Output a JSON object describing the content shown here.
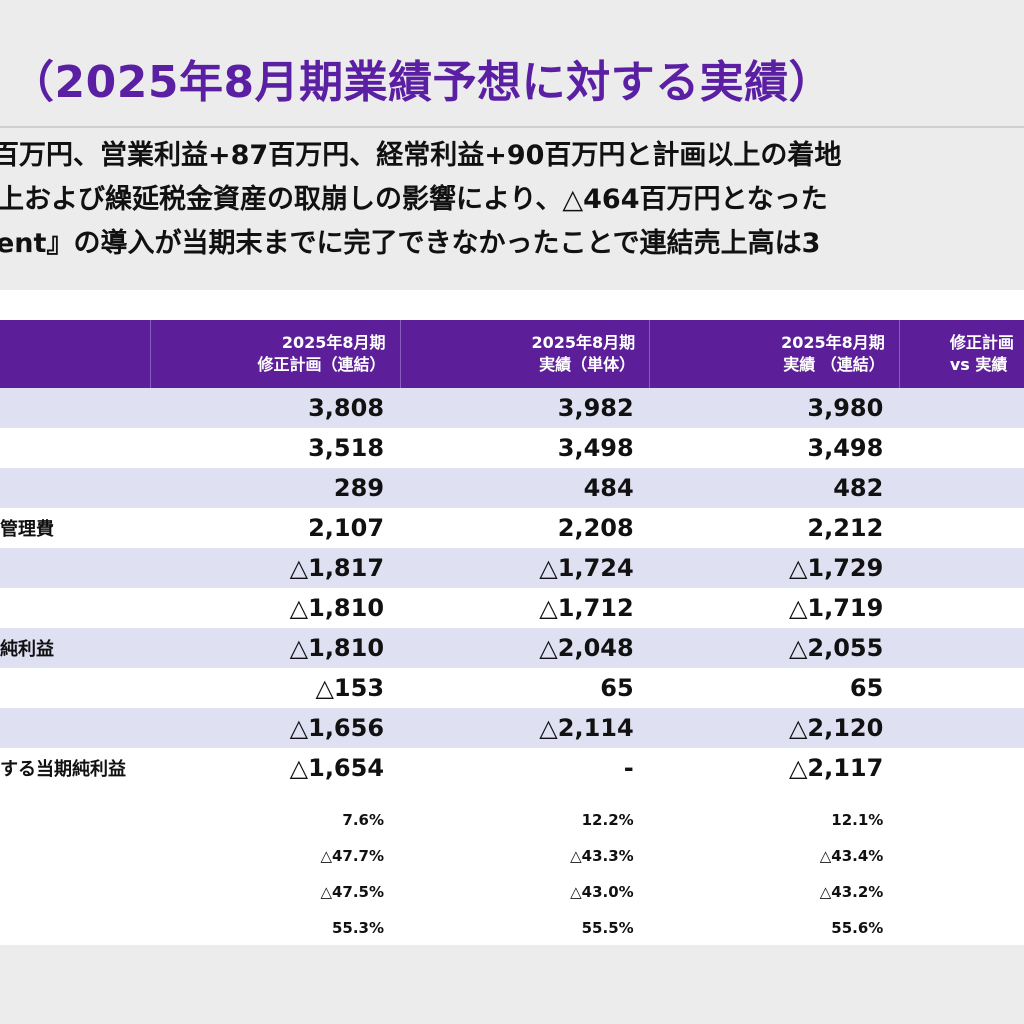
{
  "title": "（2025年8月期業績予想に対する実績）",
  "summary": [
    "百万円、営業利益+87百万円、経常利益+90百万円と計画以上の着地",
    "上および繰延税金資産の取崩しの影響により、△464百万円となった",
    "ent』の導入が当期末までに完了できなかったことで連結売上高は3"
  ],
  "table": {
    "headers": [
      {
        "line1": "2025年8月期",
        "line2": "修正計画（連結）"
      },
      {
        "line1": "2025年8月期",
        "line2": "実績（単体）"
      },
      {
        "line1": "2025年8月期",
        "line2": "実績 （連結）"
      },
      {
        "line1": "修正計画",
        "line2": "vs 実績"
      }
    ],
    "rows": [
      {
        "label": "",
        "values": [
          "3,808",
          "3,982",
          "3,980",
          ""
        ]
      },
      {
        "label": "",
        "values": [
          "3,518",
          "3,498",
          "3,498",
          ""
        ]
      },
      {
        "label": "",
        "values": [
          "289",
          "484",
          "482",
          ""
        ]
      },
      {
        "label": "管理費",
        "values": [
          "2,107",
          "2,208",
          "2,212",
          ""
        ]
      },
      {
        "label": "",
        "values": [
          "△1,817",
          "△1,724",
          "△1,729",
          ""
        ]
      },
      {
        "label": "",
        "values": [
          "△1,810",
          "△1,712",
          "△1,719",
          ""
        ]
      },
      {
        "label": "純利益",
        "values": [
          "△1,810",
          "△2,048",
          "△2,055",
          ""
        ]
      },
      {
        "label": "",
        "values": [
          "△153",
          "65",
          "65",
          ""
        ]
      },
      {
        "label": "",
        "values": [
          "△1,656",
          "△2,114",
          "△2,120",
          ""
        ]
      },
      {
        "label": "する当期純利益",
        "values": [
          "△1,654",
          "-",
          "△2,117",
          ""
        ]
      }
    ],
    "ratios": [
      {
        "label": "",
        "values": [
          "7.6%",
          "12.2%",
          "12.1%",
          ""
        ]
      },
      {
        "label": "",
        "values": [
          "△47.7%",
          "△43.3%",
          "△43.4%",
          ""
        ]
      },
      {
        "label": "",
        "values": [
          "△47.5%",
          "△43.0%",
          "△43.2%",
          ""
        ]
      },
      {
        "label": "",
        "values": [
          "55.3%",
          "55.5%",
          "55.6%",
          ""
        ]
      }
    ]
  }
}
